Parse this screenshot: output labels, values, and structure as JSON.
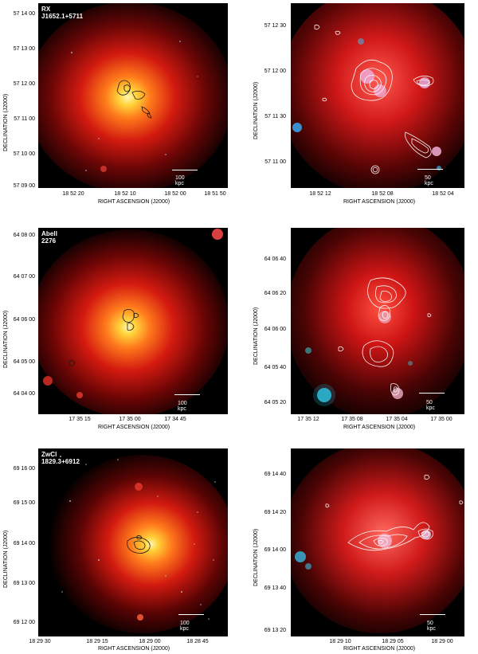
{
  "panels": [
    {
      "title": "RX J1652.1+5711",
      "scale": "100 kpc",
      "yticks": [
        "57 14 00",
        "57 13 00",
        "57 12 00",
        "57 11 00",
        "57 10 00",
        "57 09 00"
      ],
      "xticks": [
        "18 52 20",
        "18 52 10",
        "18 52 00",
        "18 51 50"
      ],
      "xlabel": "RIGHT ASCENSION  (J2000)",
      "ylabel": "DECLINATION  (J2000)"
    },
    {
      "title": "",
      "scale": "50 kpc",
      "yticks": [
        "57 12 30",
        "57 12 00",
        "57 11 30",
        "57 11 00"
      ],
      "xticks": [
        "18 52 12",
        "18 52 08",
        "18 52 04"
      ],
      "xlabel": "RIGHT ASCENSION  (J2000)",
      "ylabel": "DECLINATION  (J2000)"
    },
    {
      "title": "Abell 2276",
      "scale": "100 kpc",
      "yticks": [
        "64 08 00",
        "64 07 00",
        "64 06 00",
        "64 05 00",
        "64 04 00"
      ],
      "xticks": [
        "17 35 15",
        "17 35 00",
        "17 34 45"
      ],
      "xlabel": "RIGHT ASCENSION  (J2000)",
      "ylabel": "DECLINATION  (J2000)"
    },
    {
      "title": "",
      "scale": "50 kpc",
      "yticks": [
        "64 06 40",
        "64 06 20",
        "64 06 00",
        "64 05 40",
        "64 05 20"
      ],
      "xticks": [
        "17 35 12",
        "17 35 08",
        "17 35 04",
        "17 35 00"
      ],
      "xlabel": "RIGHT ASCENSION  (J2000)",
      "ylabel": "DECLINATION  (J2000)"
    },
    {
      "title": "ZwCl 1829.3+6912",
      "scale": "100 kpc",
      "yticks": [
        "69 16 00",
        "69 15 00",
        "69 14 00",
        "69 13 00",
        "69 12 00"
      ],
      "xticks": [
        "18 29 30",
        "18 29 15",
        "18 29 00",
        "18 28 45"
      ],
      "xlabel": "RIGHT ASCENSION  (J2000)",
      "ylabel": "DECLINATION  (J2000)"
    },
    {
      "title": "",
      "scale": "50 kpc",
      "yticks": [
        "69 14 40",
        "69 14 20",
        "69 14 00",
        "69 13 40",
        "69 13 20"
      ],
      "xticks": [
        "18 29 10",
        "18 29 05",
        "18 29 00"
      ],
      "xlabel": "RIGHT ASCENSION  (J2000)",
      "ylabel": "DECLINATION  (J2000)"
    }
  ]
}
